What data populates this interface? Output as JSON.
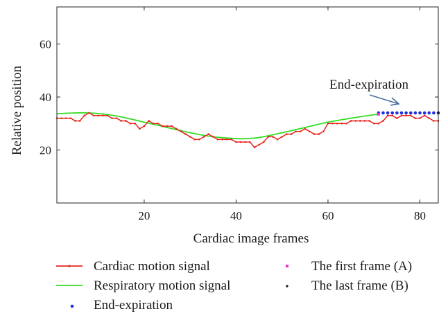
{
  "chart_data": {
    "type": "line",
    "title": "",
    "xlabel": "Cardiac image frames",
    "ylabel": "Relative position",
    "xlim": [
      1,
      84
    ],
    "ylim": [
      0,
      74
    ],
    "xticks": [
      20,
      40,
      60,
      80
    ],
    "yticks": [
      20,
      40,
      60
    ],
    "grid": false,
    "annotation": {
      "text": "End-expiration",
      "points_to": [
        76,
        34
      ]
    },
    "series": [
      {
        "name": "Cardiac motion signal",
        "color": "#e8241e",
        "marker": "dot",
        "x": [
          1,
          2,
          3,
          4,
          5,
          6,
          7,
          8,
          9,
          10,
          11,
          12,
          13,
          14,
          15,
          16,
          17,
          18,
          19,
          20,
          21,
          22,
          23,
          24,
          25,
          26,
          27,
          28,
          29,
          30,
          31,
          32,
          33,
          34,
          35,
          36,
          37,
          38,
          39,
          40,
          41,
          42,
          43,
          44,
          45,
          46,
          47,
          48,
          49,
          50,
          51,
          52,
          53,
          54,
          55,
          56,
          57,
          58,
          59,
          60,
          61,
          62,
          63,
          64,
          65,
          66,
          67,
          68,
          69,
          70,
          71,
          72,
          73,
          74,
          75,
          76,
          77,
          78,
          79,
          80,
          81,
          82,
          83,
          84
        ],
        "y": [
          32,
          32,
          32,
          32,
          31,
          31,
          33,
          34,
          33,
          33,
          33,
          33,
          32,
          32,
          31,
          31,
          30,
          30,
          28,
          29,
          31,
          30,
          30,
          29,
          29,
          29,
          28,
          27,
          26,
          25,
          24,
          24,
          25,
          26,
          25,
          24,
          24,
          24,
          24,
          23,
          23,
          23,
          23,
          21,
          22,
          23,
          25,
          25,
          24,
          25,
          26,
          26,
          27,
          27,
          28,
          27,
          26,
          26,
          27,
          30,
          30,
          30,
          30,
          30,
          31,
          31,
          31,
          31,
          31,
          30,
          30,
          31,
          33,
          33,
          32,
          33,
          33,
          33,
          32,
          32,
          33,
          32,
          31,
          31
        ]
      },
      {
        "name": "Respiratory motion signal",
        "color": "#33dd22",
        "x": [
          1,
          5,
          8,
          11,
          15,
          20,
          25,
          30,
          35,
          40,
          42,
          45,
          50,
          55,
          60,
          65,
          70,
          71
        ],
        "y": [
          33.7,
          34.0,
          34.0,
          33.6,
          32.5,
          30.5,
          28.5,
          26.5,
          25.0,
          24.3,
          24.3,
          24.7,
          26.5,
          28.5,
          30.5,
          32.0,
          33.3,
          33.5
        ]
      },
      {
        "name": "End-expiration",
        "color": "#1e2ee0",
        "marker": "circle",
        "x": [
          71,
          72,
          73,
          74,
          75,
          76,
          77,
          78,
          79,
          80,
          81,
          82,
          83,
          84
        ],
        "y": [
          34,
          34,
          34,
          34,
          34,
          34,
          34,
          34,
          34,
          34,
          34,
          34,
          34,
          34
        ]
      },
      {
        "name": "The first frame (A)",
        "color": "#ee33cc",
        "marker": "square",
        "x": [
          71
        ],
        "y": [
          33.5
        ]
      },
      {
        "name": "The last frame (B)",
        "color": "#111111",
        "marker": "dot",
        "x": [
          84
        ],
        "y": [
          34
        ]
      }
    ]
  }
}
